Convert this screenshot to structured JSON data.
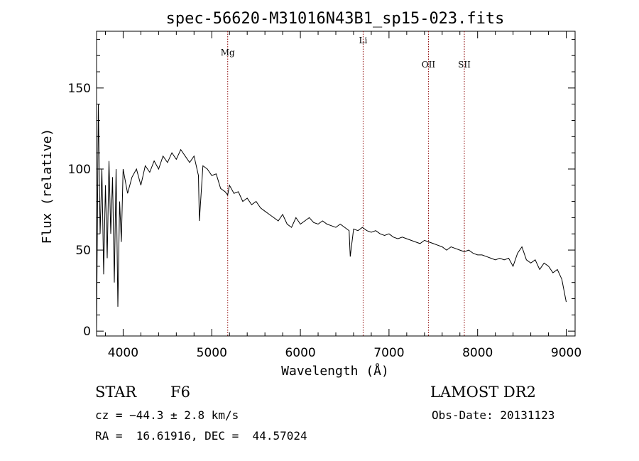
{
  "chart_data": {
    "type": "line",
    "title": "spec-56620-M31016N43B1_sp15-023.fits",
    "xlabel": "Wavelength (Å)",
    "ylabel": "Flux (relative)",
    "xlim": [
      3700,
      9100
    ],
    "ylim": [
      -3,
      185
    ],
    "xticks": [
      4000,
      5000,
      6000,
      7000,
      8000,
      9000
    ],
    "yticks": [
      0,
      50,
      100,
      150
    ],
    "ytick_labels": [
      "0",
      "50",
      "100",
      "150"
    ],
    "grid": false,
    "line_color": "#000000",
    "marker_color": "#8b0000",
    "series": [
      {
        "x": [
          3700,
          3720,
          3740,
          3760,
          3780,
          3800,
          3820,
          3840,
          3860,
          3880,
          3900,
          3920,
          3940,
          3960,
          3980,
          4000,
          4050,
          4100,
          4150,
          4200,
          4250,
          4300,
          4350,
          4400,
          4450,
          4500,
          4550,
          4600,
          4650,
          4700,
          4750,
          4800,
          4850,
          4860,
          4900,
          4950,
          5000,
          5050,
          5100,
          5150,
          5180,
          5200,
          5250,
          5300,
          5350,
          5400,
          5450,
          5500,
          5550,
          5600,
          5650,
          5700,
          5750,
          5800,
          5850,
          5900,
          5950,
          6000,
          6050,
          6100,
          6150,
          6200,
          6250,
          6300,
          6350,
          6400,
          6450,
          6500,
          6550,
          6563,
          6600,
          6650,
          6700,
          6750,
          6800,
          6850,
          6900,
          6950,
          7000,
          7050,
          7100,
          7150,
          7200,
          7250,
          7300,
          7350,
          7400,
          7450,
          7500,
          7550,
          7600,
          7650,
          7700,
          7750,
          7800,
          7850,
          7900,
          7950,
          8000,
          8050,
          8100,
          8150,
          8200,
          8250,
          8300,
          8350,
          8400,
          8450,
          8500,
          8550,
          8600,
          8650,
          8700,
          8750,
          8800,
          8850,
          8900,
          8950,
          9000
        ],
        "y": [
          0,
          140,
          60,
          100,
          35,
          90,
          45,
          105,
          60,
          95,
          30,
          100,
          15,
          80,
          55,
          100,
          85,
          95,
          100,
          90,
          102,
          98,
          105,
          100,
          108,
          104,
          110,
          106,
          112,
          108,
          104,
          108,
          96,
          68,
          102,
          100,
          96,
          97,
          88,
          86,
          84,
          90,
          85,
          86,
          80,
          82,
          78,
          80,
          76,
          74,
          72,
          70,
          68,
          72,
          66,
          64,
          70,
          66,
          68,
          70,
          67,
          66,
          68,
          66,
          65,
          64,
          66,
          64,
          62,
          46,
          63,
          62,
          64,
          62,
          61,
          62,
          60,
          59,
          60,
          58,
          57,
          58,
          57,
          56,
          55,
          54,
          56,
          55,
          54,
          53,
          52,
          50,
          52,
          51,
          50,
          49,
          50,
          48,
          47,
          47,
          46,
          45,
          44,
          45,
          44,
          45,
          40,
          48,
          52,
          44,
          42,
          44,
          38,
          42,
          40,
          36,
          38,
          32,
          18
        ]
      }
    ],
    "annotations": [
      {
        "label": "Mg",
        "x": 5180
      },
      {
        "label": "Li",
        "x": 6708
      },
      {
        "label": "OII",
        "x": 7445
      },
      {
        "label": "SII",
        "x": 7850
      }
    ]
  },
  "footer": {
    "object_class": "STAR",
    "subclass": "F6",
    "survey": "LAMOST DR2",
    "cz": "cz = −44.3 ± 2.8 km/s",
    "obs_date": "Obs-Date: 20131123",
    "coords": "RA =  16.61916, DEC =  44.57024"
  }
}
